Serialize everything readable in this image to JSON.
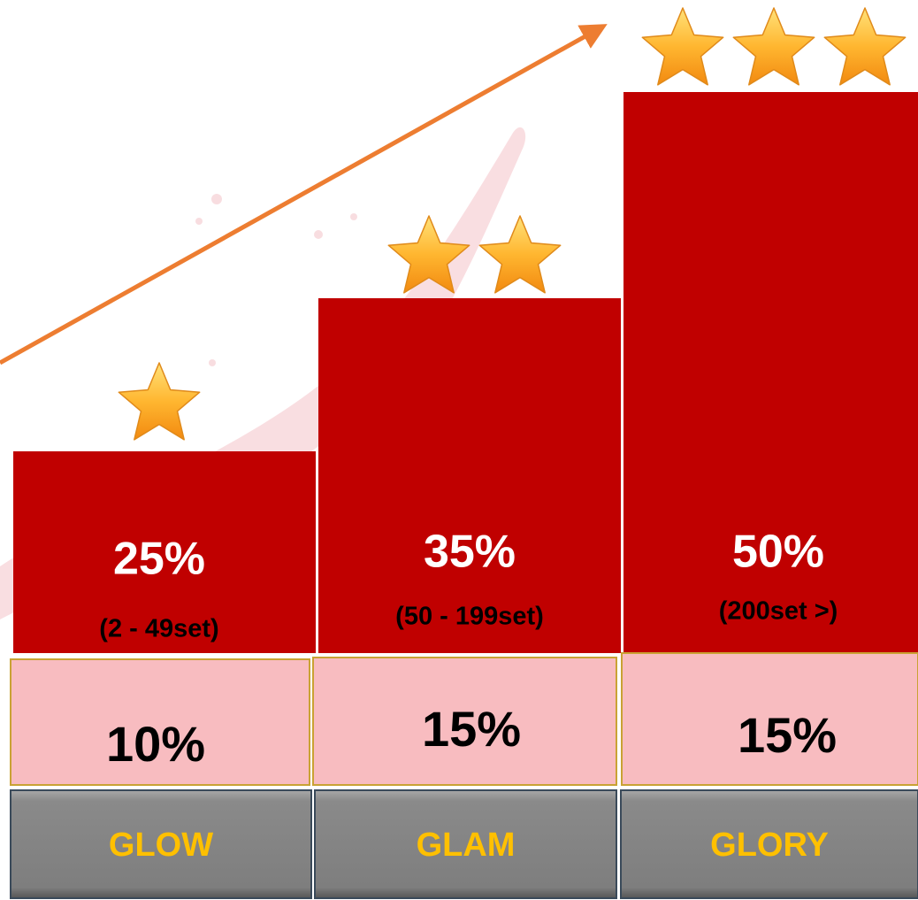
{
  "tiers": [
    {
      "name": "GLOW",
      "discount": "25%",
      "range": "(2 - 49set)",
      "bonus": "10%"
    },
    {
      "name": "GLAM",
      "discount": "35%",
      "range": "(50 - 199set)",
      "bonus": "15%"
    },
    {
      "name": "GLORY",
      "discount": "50%",
      "range": "(200set >)",
      "bonus": "15%"
    }
  ]
}
